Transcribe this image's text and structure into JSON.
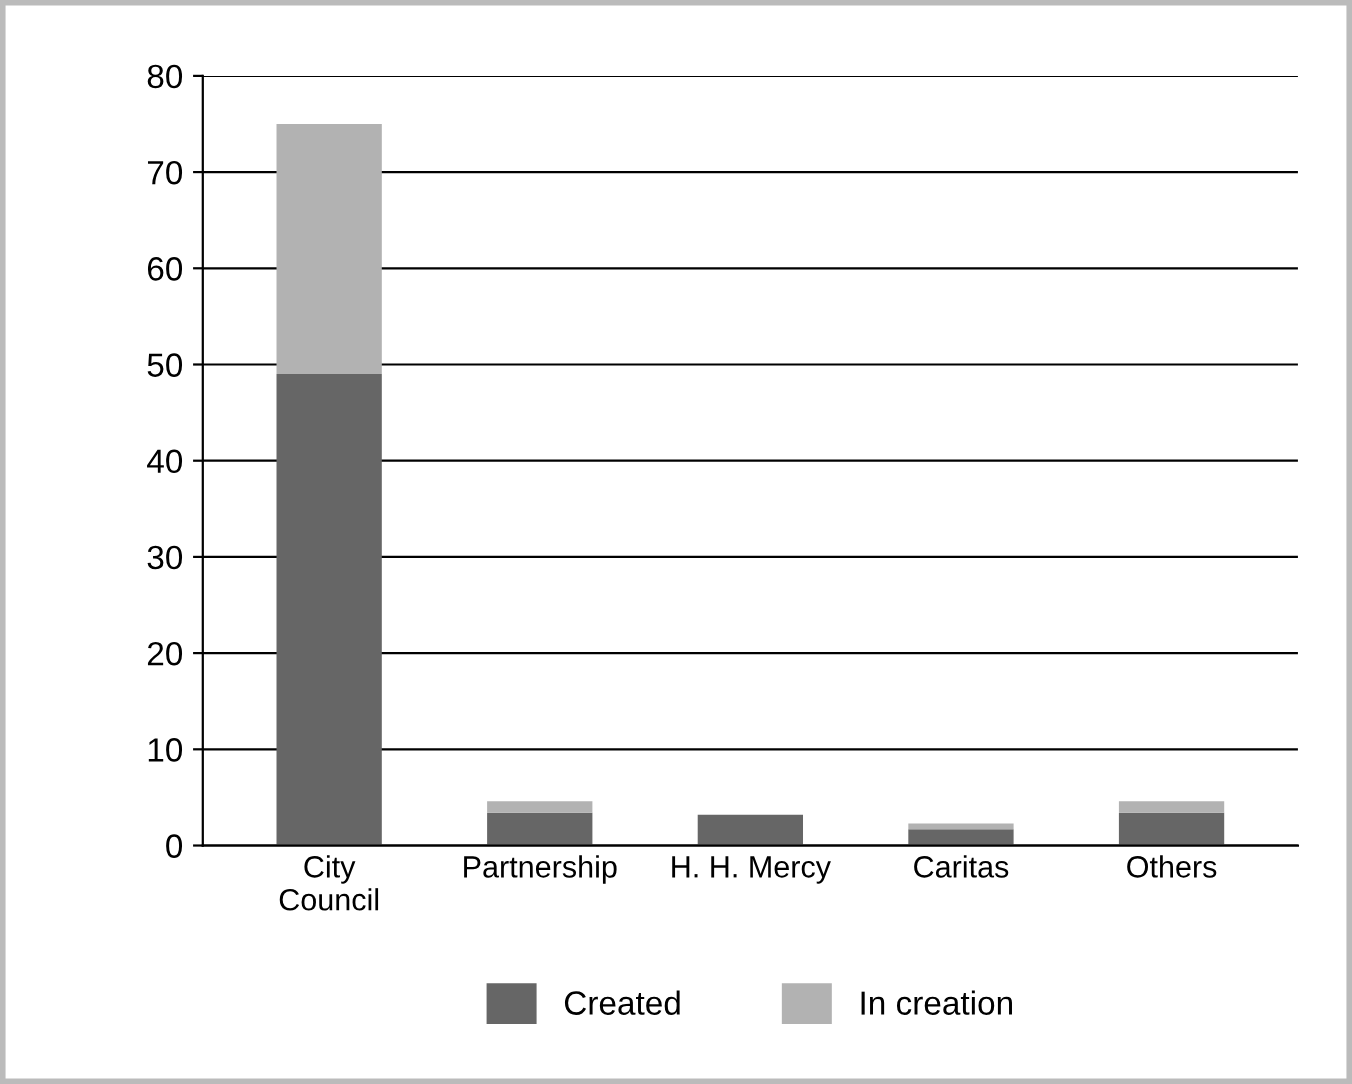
{
  "chart_data": {
    "type": "bar",
    "stacked": true,
    "categories": [
      "City\nCouncil",
      "Partnership",
      "H. H. Mercy",
      "Caritas",
      "Others"
    ],
    "series": [
      {
        "name": "Created",
        "color": "#666666",
        "values": [
          49,
          3.4,
          3.2,
          1.7,
          3.4
        ]
      },
      {
        "name": "In creation",
        "color": "#b2b2b2",
        "values": [
          26,
          1.2,
          0,
          0.6,
          1.2
        ]
      }
    ],
    "ylim": [
      0,
      80
    ],
    "yticks": [
      0,
      10,
      20,
      30,
      40,
      50,
      60,
      70,
      80
    ],
    "grid": "y",
    "legend": "bottom"
  }
}
